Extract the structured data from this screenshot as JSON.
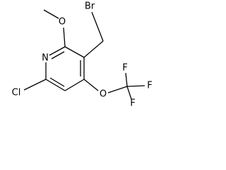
{
  "atoms": [
    {
      "label": "Br"
    },
    {
      "label": "O"
    },
    {
      "label": "N"
    },
    {
      "label": "Cl"
    },
    {
      "label": "O"
    },
    {
      "label": "F"
    },
    {
      "label": "F"
    },
    {
      "label": "F"
    }
  ]
}
